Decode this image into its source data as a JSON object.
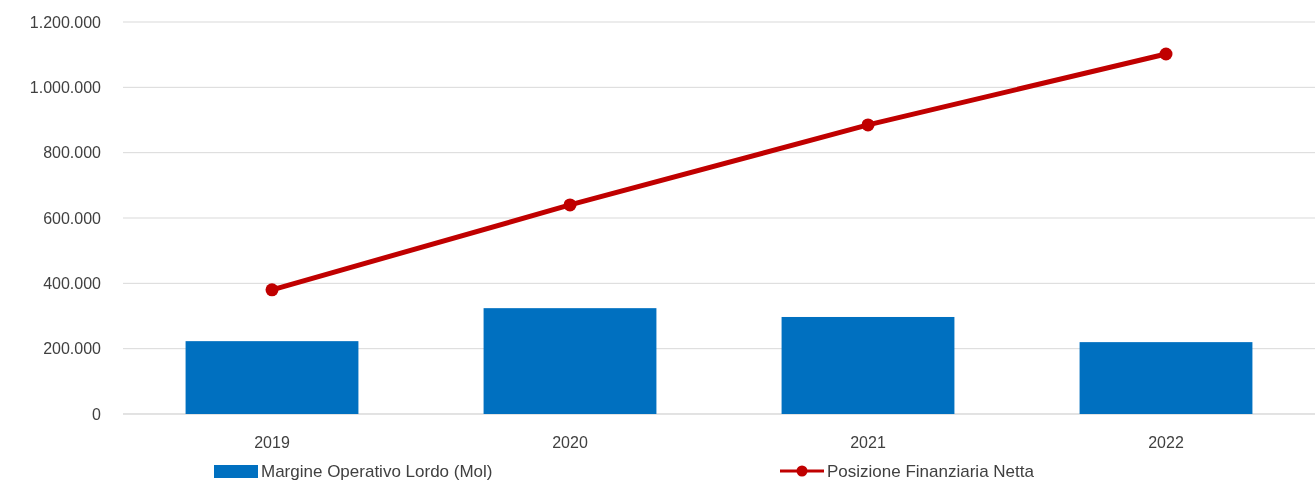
{
  "chart_data": {
    "type": "bar",
    "categories": [
      "2019",
      "2020",
      "2021",
      "2022"
    ],
    "series": [
      {
        "name": "Margine Operativo Lordo (Mol)",
        "color": "#0070c0",
        "values": [
          223000,
          324000,
          297000,
          220000
        ]
      },
      {
        "name": "Posizione Finanziaria Netta",
        "type": "line",
        "color": "#c00000",
        "values": [
          380000,
          640000,
          885000,
          1102000
        ],
        "marker": "circle"
      }
    ],
    "ylim": [
      0,
      1200000
    ],
    "yticks": [
      {
        "value": 0,
        "label": "0"
      },
      {
        "value": 200000,
        "label": "200.000"
      },
      {
        "value": 400000,
        "label": "400.000"
      },
      {
        "value": 600000,
        "label": "600.000"
      },
      {
        "value": 800000,
        "label": "800.000"
      },
      {
        "value": 1000000,
        "label": "1.000.000"
      },
      {
        "value": 1200000,
        "label": "1.200.000"
      }
    ],
    "grid": "y",
    "legend": "bottom"
  }
}
